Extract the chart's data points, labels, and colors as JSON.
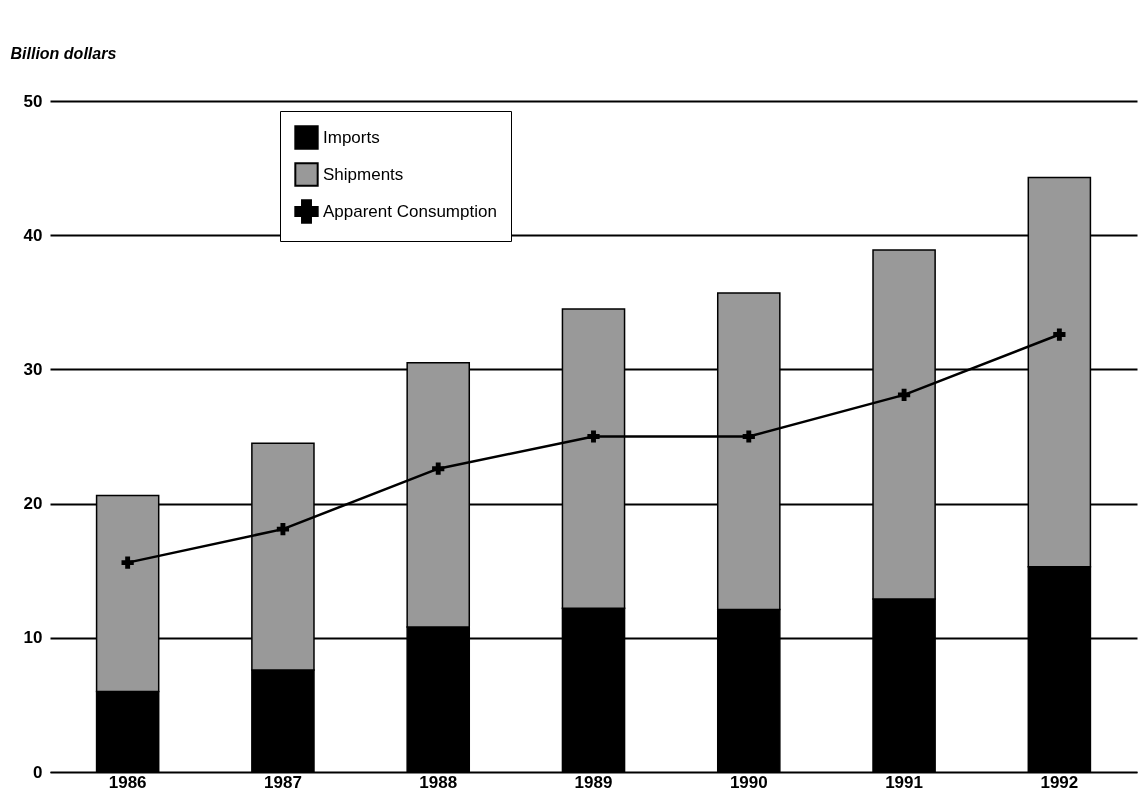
{
  "chart_data": {
    "type": "bar",
    "stacked": true,
    "ylabel": "Billion dollars",
    "categories": [
      "1986",
      "1987",
      "1988",
      "1989",
      "1990",
      "1991",
      "1992"
    ],
    "series": [
      {
        "name": "Imports",
        "color": "#000000",
        "values": [
          6.0,
          7.6,
          10.8,
          12.2,
          12.1,
          12.9,
          15.3
        ]
      },
      {
        "name": "Shipments",
        "color": "#999999",
        "values": [
          14.6,
          16.9,
          19.7,
          22.3,
          23.6,
          26.0,
          29.0
        ]
      },
      {
        "name": "Apparent Consumption",
        "type": "line",
        "color": "#000000",
        "marker": "cross",
        "values": [
          15.6,
          18.1,
          22.6,
          25.0,
          25.0,
          28.1,
          32.6
        ]
      }
    ],
    "ylim": [
      0,
      50
    ],
    "yticks": [
      0,
      10,
      20,
      30,
      40,
      50
    ],
    "grid": "y",
    "legend": "top left"
  }
}
